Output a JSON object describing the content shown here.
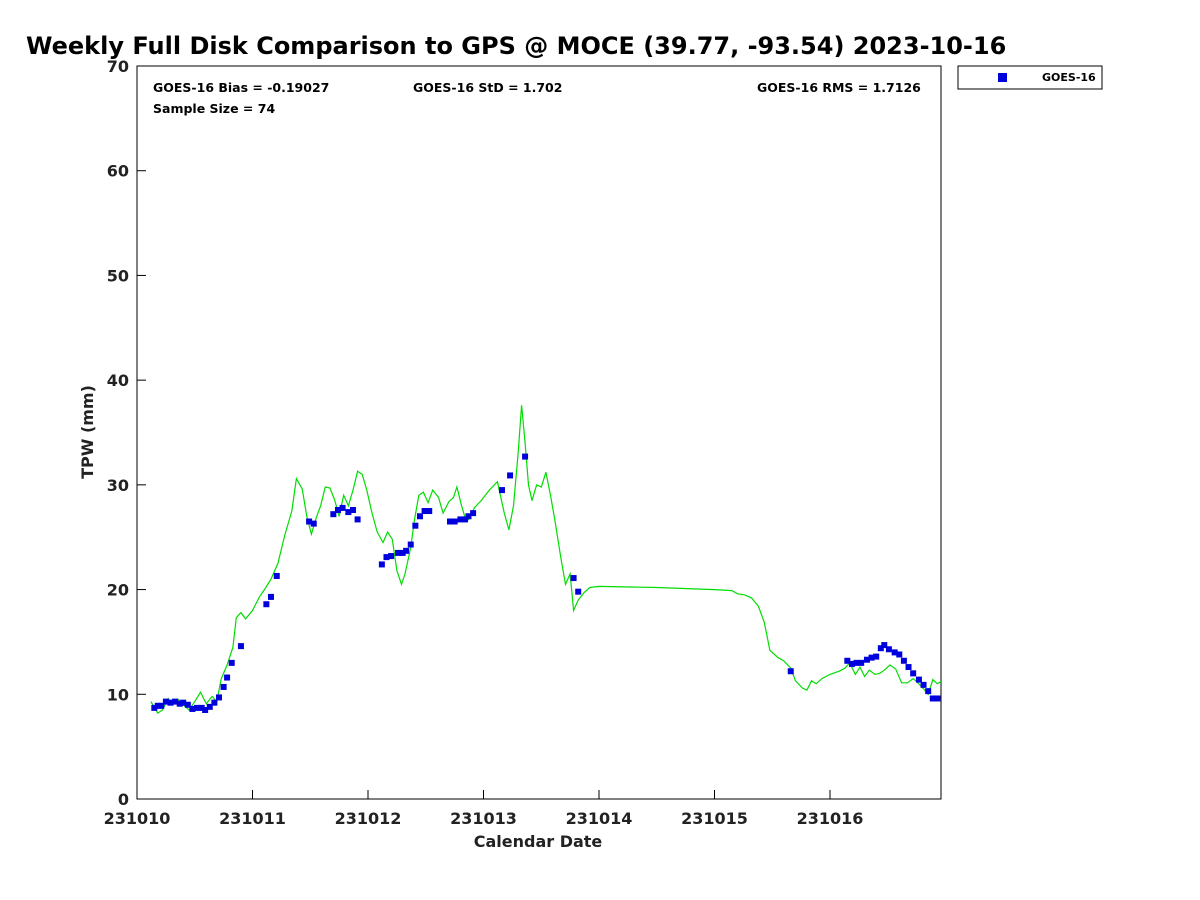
{
  "chart_data": {
    "type": "scatter",
    "title": "Weekly Full Disk Comparison to GPS @ MOCE (39.77, -93.54) 2023-10-16",
    "xlabel": "Calendar Date",
    "ylabel": "TPW (mm)",
    "xlim": [
      231010,
      231017
    ],
    "ylim": [
      0,
      70
    ],
    "x_ticks": [
      231010,
      231011,
      231012,
      231013,
      231014,
      231015,
      231016
    ],
    "x_tick_labels": [
      "231010",
      "231011",
      "231012",
      "231013",
      "231014",
      "231015",
      "231016"
    ],
    "y_ticks": [
      0,
      10,
      20,
      30,
      40,
      50,
      60,
      70
    ],
    "y_tick_labels": [
      "0",
      "10",
      "20",
      "30",
      "40",
      "50",
      "60",
      "70"
    ],
    "stats": {
      "bias": "GOES-16 Bias = -0.19027",
      "std": "GOES-16 StD = 1.702",
      "rms": "GOES-16 RMS = 1.7126",
      "sample": "Sample Size = 74"
    },
    "legend_position": "outside-top-right",
    "grid": false,
    "series": [
      {
        "name": "GOES-16",
        "kind": "marker",
        "marker": "square",
        "color": "#0000dd",
        "points": [
          [
            231010.15,
            8.7
          ],
          [
            231010.18,
            8.9
          ],
          [
            231010.21,
            8.9
          ],
          [
            231010.25,
            9.3
          ],
          [
            231010.29,
            9.2
          ],
          [
            231010.33,
            9.3
          ],
          [
            231010.37,
            9.1
          ],
          [
            231010.4,
            9.2
          ],
          [
            231010.44,
            9.0
          ],
          [
            231010.48,
            8.6
          ],
          [
            231010.52,
            8.7
          ],
          [
            231010.56,
            8.7
          ],
          [
            231010.59,
            8.5
          ],
          [
            231010.63,
            8.8
          ],
          [
            231010.67,
            9.2
          ],
          [
            231010.71,
            9.7
          ],
          [
            231010.75,
            10.7
          ],
          [
            231010.78,
            11.6
          ],
          [
            231010.82,
            13.0
          ],
          [
            231010.9,
            14.6
          ],
          [
            231011.12,
            18.6
          ],
          [
            231011.16,
            19.3
          ],
          [
            231011.21,
            21.3
          ],
          [
            231011.49,
            26.5
          ],
          [
            231011.53,
            26.3
          ],
          [
            231011.7,
            27.2
          ],
          [
            231011.74,
            27.6
          ],
          [
            231011.78,
            27.8
          ],
          [
            231011.83,
            27.4
          ],
          [
            231011.87,
            27.6
          ],
          [
            231011.91,
            26.7
          ],
          [
            231012.12,
            22.4
          ],
          [
            231012.16,
            23.1
          ],
          [
            231012.2,
            23.2
          ],
          [
            231012.26,
            23.5
          ],
          [
            231012.3,
            23.5
          ],
          [
            231012.33,
            23.7
          ],
          [
            231012.37,
            24.3
          ],
          [
            231012.41,
            26.1
          ],
          [
            231012.45,
            27.0
          ],
          [
            231012.49,
            27.5
          ],
          [
            231012.53,
            27.5
          ],
          [
            231012.71,
            26.5
          ],
          [
            231012.75,
            26.5
          ],
          [
            231012.8,
            26.7
          ],
          [
            231012.84,
            26.7
          ],
          [
            231012.87,
            27.0
          ],
          [
            231012.91,
            27.3
          ],
          [
            231013.16,
            29.5
          ],
          [
            231013.23,
            30.9
          ],
          [
            231013.36,
            32.7
          ],
          [
            231013.78,
            21.1
          ],
          [
            231013.82,
            19.8
          ],
          [
            231015.66,
            12.2
          ],
          [
            231016.15,
            13.2
          ],
          [
            231016.19,
            12.9
          ],
          [
            231016.23,
            13.0
          ],
          [
            231016.27,
            13.0
          ],
          [
            231016.32,
            13.3
          ],
          [
            231016.36,
            13.5
          ],
          [
            231016.4,
            13.6
          ],
          [
            231016.44,
            14.4
          ],
          [
            231016.47,
            14.7
          ],
          [
            231016.51,
            14.3
          ],
          [
            231016.56,
            14.0
          ],
          [
            231016.6,
            13.8
          ],
          [
            231016.64,
            13.2
          ],
          [
            231016.68,
            12.6
          ],
          [
            231016.72,
            12.0
          ],
          [
            231016.77,
            11.4
          ],
          [
            231016.81,
            10.9
          ],
          [
            231016.85,
            10.3
          ],
          [
            231016.89,
            9.6
          ],
          [
            231016.93,
            9.6
          ]
        ]
      },
      {
        "kind": "line",
        "color": "#00dd00",
        "points": [
          [
            231010.12,
            9.3
          ],
          [
            231010.18,
            8.2
          ],
          [
            231010.22,
            8.5
          ],
          [
            231010.27,
            9.6
          ],
          [
            231010.31,
            9.0
          ],
          [
            231010.36,
            9.5
          ],
          [
            231010.41,
            8.9
          ],
          [
            231010.45,
            8.5
          ],
          [
            231010.5,
            9.3
          ],
          [
            231010.55,
            10.2
          ],
          [
            231010.6,
            9.1
          ],
          [
            231010.65,
            9.8
          ],
          [
            231010.69,
            9.3
          ],
          [
            231010.73,
            11.5
          ],
          [
            231010.78,
            12.8
          ],
          [
            231010.83,
            14.5
          ],
          [
            231010.86,
            17.3
          ],
          [
            231010.9,
            17.8
          ],
          [
            231010.94,
            17.2
          ],
          [
            231011.0,
            18.0
          ],
          [
            231011.06,
            19.3
          ],
          [
            231011.11,
            20.1
          ],
          [
            231011.16,
            21.0
          ],
          [
            231011.22,
            22.5
          ],
          [
            231011.28,
            25.2
          ],
          [
            231011.34,
            27.5
          ],
          [
            231011.38,
            30.6
          ],
          [
            231011.43,
            29.6
          ],
          [
            231011.47,
            27.0
          ],
          [
            231011.51,
            25.3
          ],
          [
            231011.55,
            26.8
          ],
          [
            231011.59,
            28.0
          ],
          [
            231011.63,
            29.8
          ],
          [
            231011.67,
            29.7
          ],
          [
            231011.71,
            28.6
          ],
          [
            231011.75,
            27.0
          ],
          [
            231011.79,
            29.0
          ],
          [
            231011.83,
            28.0
          ],
          [
            231011.87,
            29.5
          ],
          [
            231011.91,
            31.3
          ],
          [
            231011.95,
            31.0
          ],
          [
            231011.99,
            29.5
          ],
          [
            231012.03,
            27.5
          ],
          [
            231012.08,
            25.5
          ],
          [
            231012.13,
            24.5
          ],
          [
            231012.17,
            25.5
          ],
          [
            231012.21,
            24.8
          ],
          [
            231012.25,
            21.8
          ],
          [
            231012.29,
            20.5
          ],
          [
            231012.32,
            21.5
          ],
          [
            231012.37,
            24.0
          ],
          [
            231012.4,
            26.5
          ],
          [
            231012.44,
            29.0
          ],
          [
            231012.48,
            29.3
          ],
          [
            231012.52,
            28.3
          ],
          [
            231012.56,
            29.5
          ],
          [
            231012.61,
            28.8
          ],
          [
            231012.65,
            27.3
          ],
          [
            231012.7,
            28.4
          ],
          [
            231012.74,
            28.8
          ],
          [
            231012.77,
            29.8
          ],
          [
            231012.81,
            28.0
          ],
          [
            231012.85,
            26.5
          ],
          [
            231012.88,
            26.8
          ],
          [
            231012.92,
            27.8
          ],
          [
            231012.98,
            28.5
          ],
          [
            231013.05,
            29.5
          ],
          [
            231013.12,
            30.3
          ],
          [
            231013.18,
            27.3
          ],
          [
            231013.22,
            25.7
          ],
          [
            231013.26,
            28.0
          ],
          [
            231013.3,
            33.0
          ],
          [
            231013.33,
            37.6
          ],
          [
            231013.36,
            34.0
          ],
          [
            231013.39,
            30.0
          ],
          [
            231013.42,
            28.5
          ],
          [
            231013.46,
            30.0
          ],
          [
            231013.5,
            29.8
          ],
          [
            231013.54,
            31.2
          ],
          [
            231013.58,
            29.0
          ],
          [
            231013.62,
            26.5
          ],
          [
            231013.67,
            23.0
          ],
          [
            231013.71,
            20.5
          ],
          [
            231013.75,
            21.5
          ],
          [
            231013.78,
            18.0
          ],
          [
            231013.82,
            19.0
          ],
          [
            231013.87,
            19.7
          ],
          [
            231013.92,
            20.2
          ],
          [
            231014.0,
            20.3
          ],
          [
            231014.5,
            20.2
          ],
          [
            231015.0,
            20.0
          ],
          [
            231015.15,
            19.9
          ],
          [
            231015.2,
            19.6
          ],
          [
            231015.26,
            19.5
          ],
          [
            231015.32,
            19.2
          ],
          [
            231015.38,
            18.4
          ],
          [
            231015.43,
            16.9
          ],
          [
            231015.48,
            14.2
          ],
          [
            231015.55,
            13.5
          ],
          [
            231015.6,
            13.2
          ],
          [
            231015.66,
            12.5
          ],
          [
            231015.7,
            11.3
          ],
          [
            231015.76,
            10.6
          ],
          [
            231015.8,
            10.4
          ],
          [
            231015.84,
            11.3
          ],
          [
            231015.88,
            11.0
          ],
          [
            231015.93,
            11.5
          ],
          [
            231016.0,
            11.9
          ],
          [
            231016.08,
            12.2
          ],
          [
            231016.13,
            12.5
          ],
          [
            231016.17,
            13.0
          ],
          [
            231016.22,
            11.9
          ],
          [
            231016.26,
            12.6
          ],
          [
            231016.3,
            11.7
          ],
          [
            231016.34,
            12.3
          ],
          [
            231016.39,
            11.9
          ],
          [
            231016.43,
            12.0
          ],
          [
            231016.47,
            12.3
          ],
          [
            231016.52,
            12.8
          ],
          [
            231016.57,
            12.4
          ],
          [
            231016.62,
            11.1
          ],
          [
            231016.67,
            11.1
          ],
          [
            231016.72,
            11.5
          ],
          [
            231016.77,
            11.0
          ],
          [
            231016.81,
            10.5
          ],
          [
            231016.85,
            10.0
          ],
          [
            231016.89,
            11.4
          ],
          [
            231016.93,
            11.0
          ],
          [
            231016.97,
            11.3
          ]
        ]
      }
    ]
  }
}
